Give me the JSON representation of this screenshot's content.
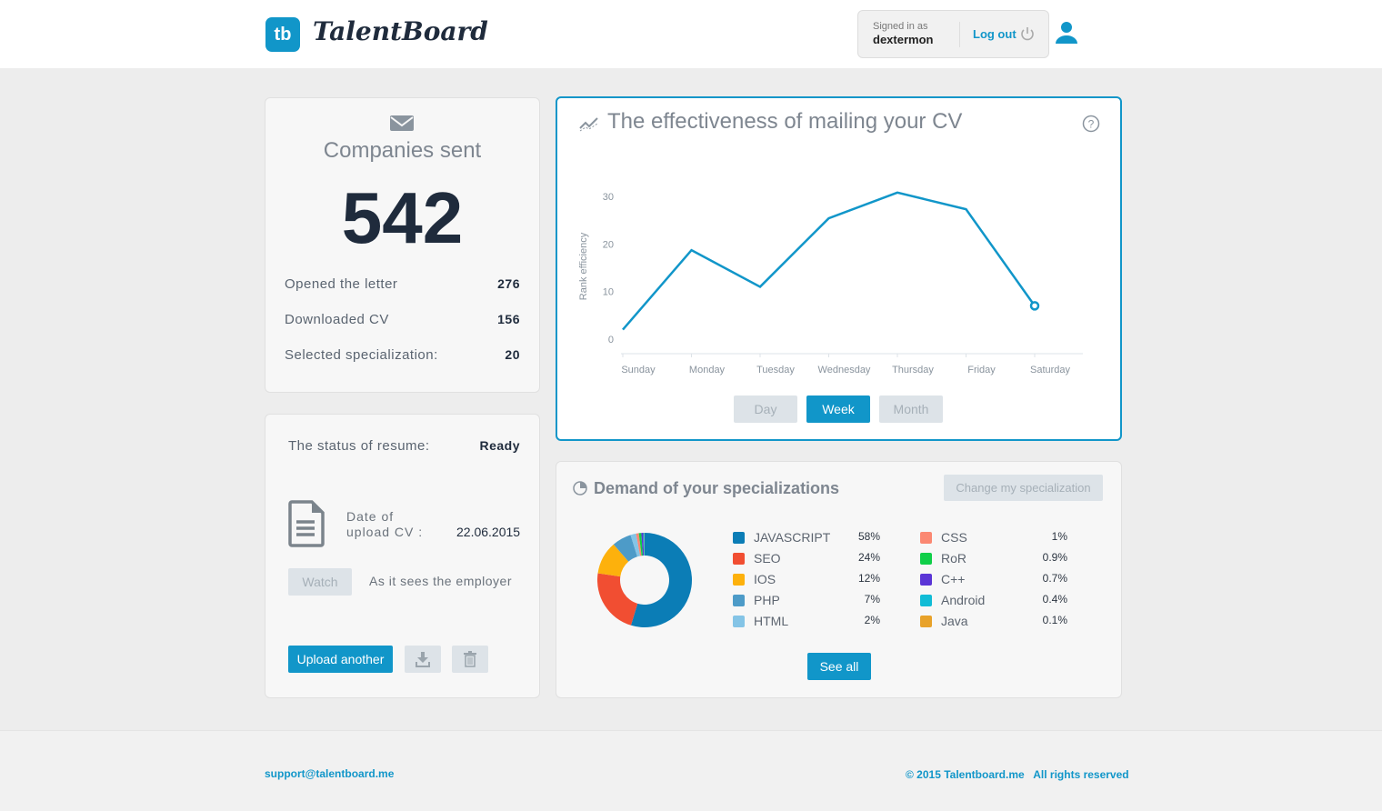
{
  "header": {
    "logo_mark": "tb",
    "logo_text": "TalentBoard",
    "signed_in_label": "Signed in as",
    "username": "dextermon",
    "logout_label": "Log out"
  },
  "companies": {
    "title": "Companies sent",
    "count": "542",
    "stats": [
      {
        "label": "Opened the letter",
        "value": "276"
      },
      {
        "label": "Downloaded CV",
        "value": "156"
      },
      {
        "label": "Selected specialization:",
        "value": "20"
      }
    ]
  },
  "resume": {
    "status_label": "The status of resume:",
    "status_value": "Ready",
    "date_label_1": "Date of",
    "date_label_2": "upload CV :",
    "date_value": "22.06.2015",
    "watch_label": "Watch",
    "watch_note": "As it sees the employer",
    "upload_label": "Upload another"
  },
  "effectiveness": {
    "title": "The effectiveness of mailing your CV",
    "ranges": [
      "Day",
      "Week",
      "Month"
    ],
    "active_range": "Week"
  },
  "demand": {
    "title": "Demand of your specializations",
    "change_label": "Change my specialization",
    "see_all_label": "See all"
  },
  "chart_data": [
    {
      "type": "line",
      "ylabel": "Rank efficiency",
      "ylim": [
        0,
        30
      ],
      "yticks": [
        0,
        10,
        20,
        30
      ],
      "categories": [
        "Sunday",
        "Monday",
        "Tuesday",
        "Wednesday",
        "Thursday",
        "Friday",
        "Saturday"
      ],
      "values": [
        2,
        18.7,
        11,
        25.4,
        30.8,
        27.3,
        7
      ],
      "color": "#1196c9",
      "grid": false
    },
    {
      "type": "pie",
      "donut": true,
      "slices": [
        {
          "label": "JAVASCRIPT",
          "pct": "58%",
          "value": 58,
          "color": "#0b7db6"
        },
        {
          "label": "SEO",
          "pct": "24%",
          "value": 24,
          "color": "#f14e32"
        },
        {
          "label": "IOS",
          "pct": "12%",
          "value": 12,
          "color": "#fdb10c"
        },
        {
          "label": "PHP",
          "pct": "7%",
          "value": 7,
          "color": "#4d9bc8"
        },
        {
          "label": "HTML",
          "pct": "2%",
          "value": 2,
          "color": "#84c4e6"
        },
        {
          "label": "CSS",
          "pct": "1%",
          "value": 1,
          "color": "#fb8872"
        },
        {
          "label": "RoR",
          "pct": "0.9%",
          "value": 0.9,
          "color": "#10cf49"
        },
        {
          "label": "C++",
          "pct": "0.7%",
          "value": 0.7,
          "color": "#5a35d6"
        },
        {
          "label": "Android",
          "pct": "0.4%",
          "value": 0.4,
          "color": "#11bcd6"
        },
        {
          "label": "Java",
          "pct": "0.1%",
          "value": 0.1,
          "color": "#e8a22a"
        }
      ]
    }
  ],
  "footer": {
    "email": "support@talentboard.me",
    "copyright": "© 2015 Talentboard.me",
    "rights": "All rights reserved"
  }
}
